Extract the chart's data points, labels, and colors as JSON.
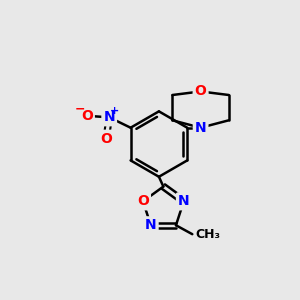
{
  "bg_color": "#e8e8e8",
  "bond_color": "#000000",
  "atom_colors": {
    "O": "#ff0000",
    "N": "#0000ff",
    "C": "#000000"
  },
  "line_width": 1.8,
  "font_size_atoms": 10,
  "font_size_small": 9,
  "font_size_superscript": 7
}
